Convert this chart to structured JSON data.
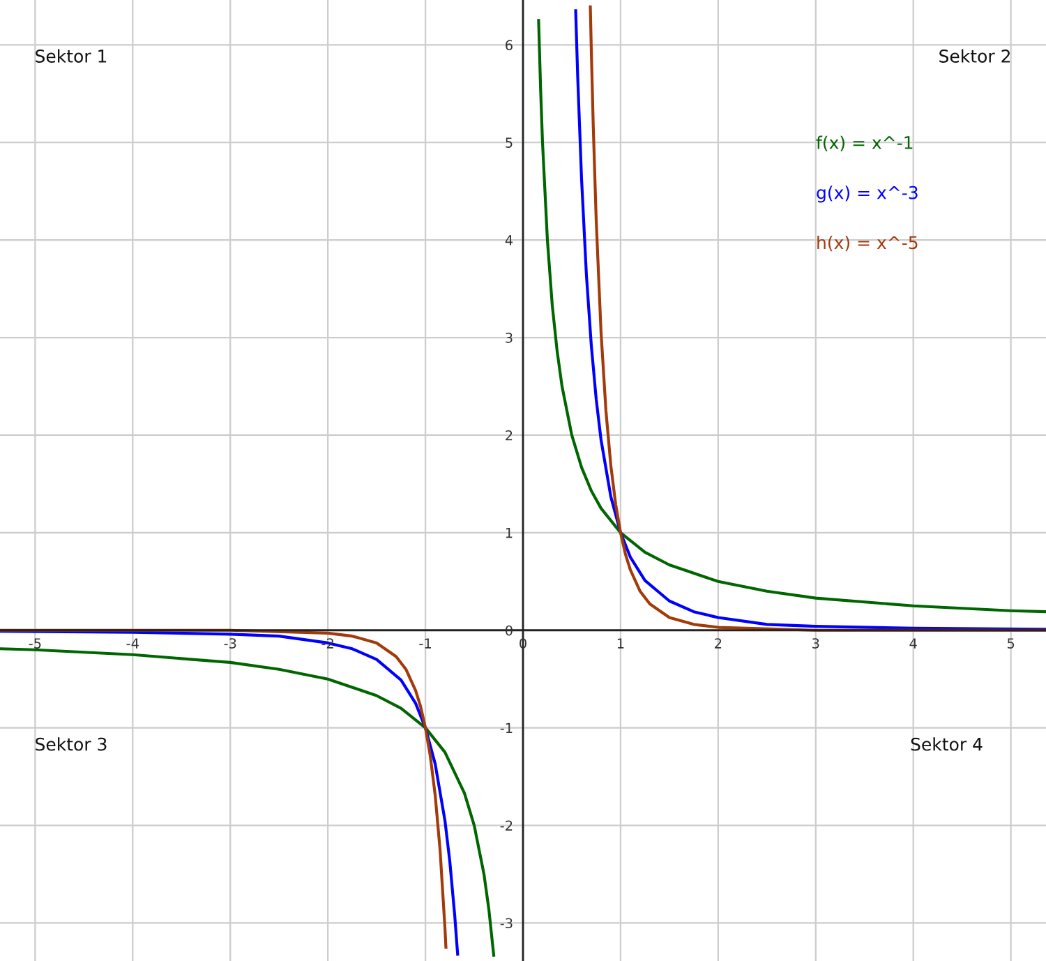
{
  "chart_data": {
    "type": "line",
    "xlim": [
      -5.36,
      5.36
    ],
    "ylim": [
      -3.39,
      6.46
    ],
    "xticks": [
      -5,
      -4,
      -3,
      -2,
      -1,
      0,
      1,
      2,
      3,
      4,
      5
    ],
    "yticks": [
      -3,
      -2,
      -1,
      0,
      1,
      2,
      3,
      4,
      5,
      6
    ],
    "grid": true,
    "legend": "top right",
    "marker": "none",
    "line_style": "solid",
    "annotations": [
      "Sektor 1",
      "Sektor 2",
      "Sektor 3",
      "Sektor 4"
    ],
    "series": [
      {
        "name": "f(x) = x^-1",
        "color": "#006600",
        "x": [
          -5.35,
          -5,
          -4,
          -3,
          -2.5,
          -2,
          -1.5,
          -1.25,
          -1,
          -0.8,
          -0.6,
          -0.5,
          -0.4,
          -0.35,
          -0.3,
          0,
          0.16,
          0.18,
          0.2,
          0.25,
          0.3,
          0.35,
          0.4,
          0.5,
          0.6,
          0.7,
          0.8,
          1,
          1.25,
          1.5,
          2,
          2.5,
          3,
          4,
          5,
          5.35
        ],
        "values": [
          -0.19,
          -0.2,
          -0.25,
          -0.33,
          -0.4,
          -0.5,
          -0.67,
          -0.8,
          -1,
          -1.25,
          -1.67,
          -2,
          -2.5,
          -2.86,
          -3.33,
          null,
          6.25,
          5.56,
          5,
          4,
          3.33,
          2.86,
          2.5,
          2,
          1.67,
          1.43,
          1.25,
          1,
          0.8,
          0.67,
          0.5,
          0.4,
          0.33,
          0.25,
          0.2,
          0.19
        ]
      },
      {
        "name": "g(x) = x^-3",
        "color": "#0000ff",
        "x": [
          -5.35,
          -4,
          -3,
          -2.5,
          -2,
          -1.75,
          -1.5,
          -1.25,
          -1.1,
          -1,
          -0.9,
          -0.8,
          -0.75,
          -0.7,
          -0.67,
          0,
          0.54,
          0.56,
          0.6,
          0.65,
          0.7,
          0.75,
          0.8,
          0.9,
          1,
          1.1,
          1.25,
          1.5,
          1.75,
          2,
          2.5,
          3,
          4,
          5.35
        ],
        "values": [
          -0.01,
          -0.02,
          -0.04,
          -0.06,
          -0.13,
          -0.19,
          -0.3,
          -0.51,
          -0.75,
          -1,
          -1.37,
          -1.95,
          -2.37,
          -2.92,
          -3.32,
          null,
          6.35,
          5.69,
          4.63,
          3.64,
          2.92,
          2.37,
          1.95,
          1.37,
          1,
          0.75,
          0.51,
          0.3,
          0.19,
          0.13,
          0.06,
          0.04,
          0.02,
          0.01
        ]
      },
      {
        "name": "h(x) = x^-5",
        "color": "#a33a0a",
        "x": [
          -5.35,
          -3,
          -2,
          -1.75,
          -1.5,
          -1.3,
          -1.2,
          -1.1,
          -1.05,
          -1,
          -0.95,
          -0.9,
          -0.85,
          -0.8,
          -0.79,
          0,
          0.69,
          0.7,
          0.72,
          0.75,
          0.8,
          0.85,
          0.9,
          0.95,
          1,
          1.05,
          1.1,
          1.2,
          1.3,
          1.5,
          1.75,
          2,
          3,
          5.35
        ],
        "values": [
          0,
          0,
          -0.03,
          -0.06,
          -0.13,
          -0.27,
          -0.4,
          -0.62,
          -0.78,
          -1,
          -1.29,
          -1.69,
          -2.25,
          -3.05,
          -3.25,
          null,
          6.39,
          5.95,
          5.17,
          4.21,
          3.05,
          2.25,
          1.69,
          1.29,
          1,
          0.78,
          0.62,
          0.4,
          0.27,
          0.13,
          0.06,
          0.03,
          0,
          0
        ]
      }
    ]
  }
}
